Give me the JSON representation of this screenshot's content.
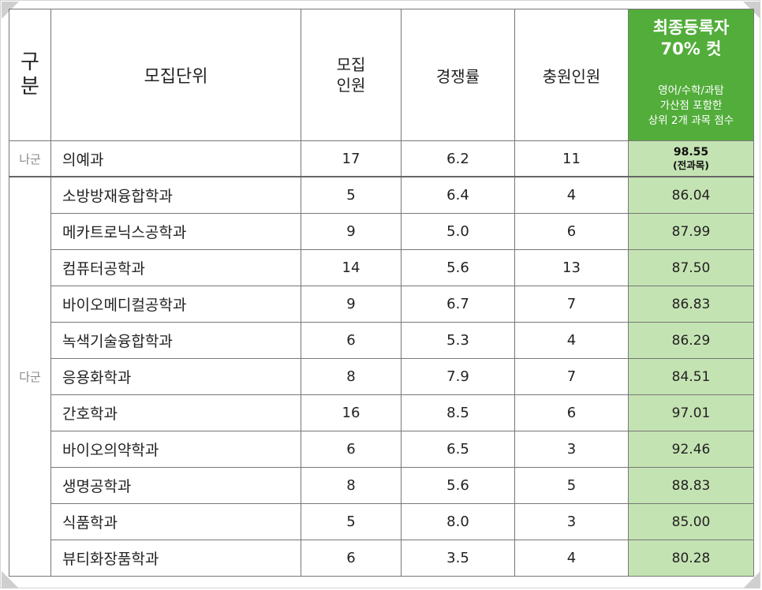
{
  "header": {
    "gubun": [
      "구",
      "분"
    ],
    "unit": "모집단위",
    "mojip": [
      "모집",
      "인원"
    ],
    "rate": "경쟁률",
    "chung": "충원인원",
    "final_title": [
      "최종등록자",
      "70% 컷"
    ],
    "final_sub": [
      "영어/수학/과탐",
      "가산점 포함한",
      "상위 2개 과목 점수"
    ]
  },
  "groups": {
    "na": "나군",
    "da": "다군"
  },
  "rows": [
    {
      "name": "의예과",
      "mojip": "17",
      "rate": "6.2",
      "chung": "11",
      "score": "98.55",
      "note": "(전과목)"
    },
    {
      "name": "소방방재융합학과",
      "mojip": "5",
      "rate": "6.4",
      "chung": "4",
      "score": "86.04"
    },
    {
      "name": "메카트로닉스공학과",
      "mojip": "9",
      "rate": "5.0",
      "chung": "6",
      "score": "87.99"
    },
    {
      "name": "컴퓨터공학과",
      "mojip": "14",
      "rate": "5.6",
      "chung": "13",
      "score": "87.50"
    },
    {
      "name": "바이오메디컬공학과",
      "mojip": "9",
      "rate": "6.7",
      "chung": "7",
      "score": "86.83"
    },
    {
      "name": "녹색기술융합학과",
      "mojip": "6",
      "rate": "5.3",
      "chung": "4",
      "score": "86.29"
    },
    {
      "name": "응용화학과",
      "mojip": "8",
      "rate": "7.9",
      "chung": "7",
      "score": "84.51"
    },
    {
      "name": "간호학과",
      "mojip": "16",
      "rate": "8.5",
      "chung": "6",
      "score": "97.01"
    },
    {
      "name": "바이오의약학과",
      "mojip": "6",
      "rate": "6.5",
      "chung": "3",
      "score": "92.46"
    },
    {
      "name": "생명공학과",
      "mojip": "8",
      "rate": "5.6",
      "chung": "5",
      "score": "88.83"
    },
    {
      "name": "식품학과",
      "mojip": "5",
      "rate": "8.0",
      "chung": "3",
      "score": "85.00"
    },
    {
      "name": "뷰티화장품학과",
      "mojip": "6",
      "rate": "3.5",
      "chung": "4",
      "score": "80.28"
    }
  ]
}
